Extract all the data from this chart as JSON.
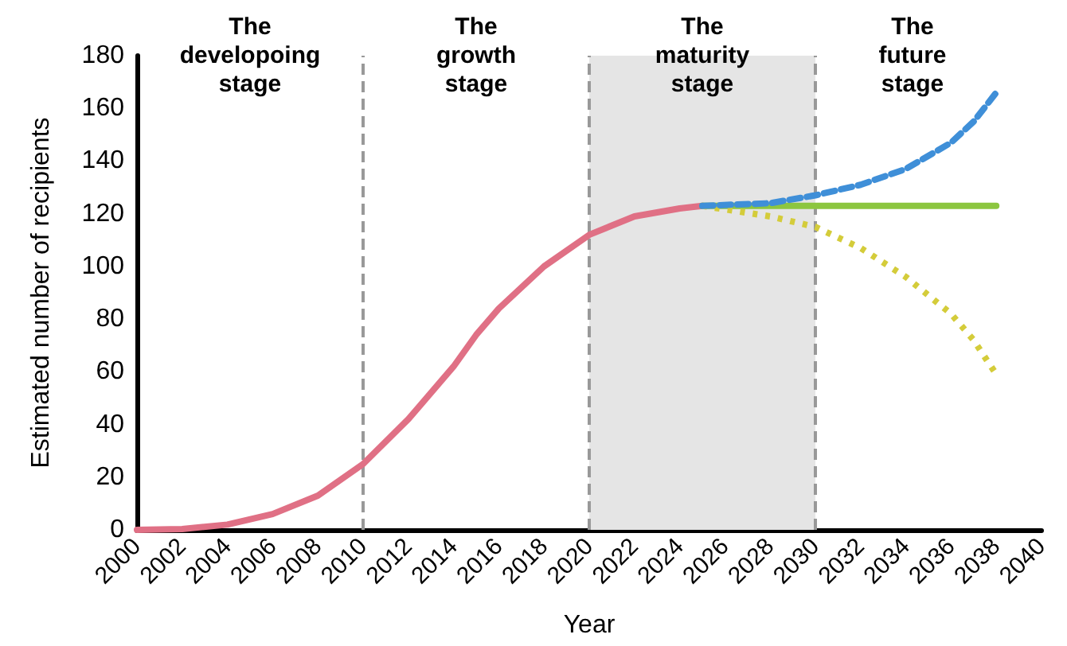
{
  "chart_data": {
    "type": "line",
    "xlabel": "Year",
    "ylabel": "Estimated number of recipients",
    "xlim": [
      2000,
      2040
    ],
    "xticks": [
      2000,
      2002,
      2004,
      2006,
      2008,
      2010,
      2012,
      2014,
      2016,
      2018,
      2020,
      2022,
      2024,
      2026,
      2028,
      2030,
      2032,
      2034,
      2036,
      2038,
      2040
    ],
    "ylim": [
      0,
      180
    ],
    "yticks": [
      0,
      20,
      40,
      60,
      80,
      100,
      120,
      140,
      160,
      180
    ],
    "grid": false,
    "marker": "none",
    "series": [
      {
        "color": "#e07085",
        "line_style": "solid",
        "x": [
          2000,
          2002,
          2004,
          2006,
          2008,
          2010,
          2012,
          2014,
          2015,
          2016,
          2018,
          2020,
          2022,
          2024,
          2025
        ],
        "values": [
          0,
          0.3,
          2,
          6,
          13,
          25,
          42,
          62,
          74,
          84,
          100,
          112,
          119,
          122,
          123
        ]
      },
      {
        "color": "#3f8fd8",
        "line_style": "dashed",
        "x": [
          2025,
          2028,
          2030,
          2032,
          2034,
          2036,
          2037,
          2038
        ],
        "values": [
          123,
          124,
          127,
          131,
          137,
          147,
          155,
          166
        ]
      },
      {
        "color": "#8cc63f",
        "line_style": "solid",
        "x": [
          2025,
          2038
        ],
        "values": [
          123,
          123
        ]
      },
      {
        "color": "#d4cc3a",
        "line_style": "dotted",
        "x": [
          2025,
          2028,
          2030,
          2032,
          2034,
          2036,
          2037,
          2038
        ],
        "values": [
          123,
          119,
          115,
          107,
          96,
          82,
          72,
          59
        ]
      }
    ],
    "bands": [
      {
        "axis": "x",
        "from": 2020,
        "to": 2030,
        "color": "#e5e5e5"
      }
    ],
    "ref_lines": [
      {
        "axis": "x",
        "value": 2010,
        "color": "#999999",
        "line_style": "dashed"
      },
      {
        "axis": "x",
        "value": 2020,
        "color": "#999999",
        "line_style": "dashed"
      },
      {
        "axis": "x",
        "value": 2030,
        "color": "#999999",
        "line_style": "dashed"
      }
    ],
    "annotations": [
      "The\ndevelopoing\nstage",
      "The\ngrowth\nstage",
      "The\nmaturity\nstage",
      "The\nfuture\nstage"
    ]
  }
}
